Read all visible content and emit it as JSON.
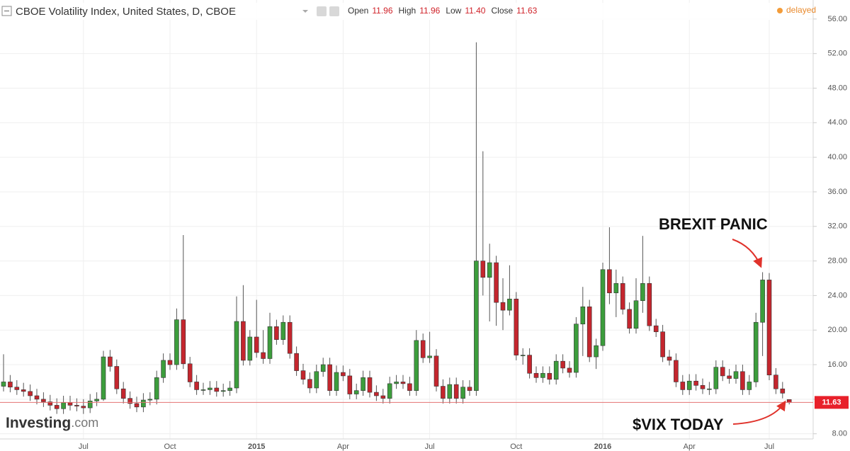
{
  "chart_data": {
    "type": "candlestick",
    "title": "CBOE Volatility Index, United States, D, CBOE",
    "ohlc_legend": [
      {
        "label": "Open",
        "value": "11.96"
      },
      {
        "label": "High",
        "value": "11.96"
      },
      {
        "label": "Low",
        "value": "11.40"
      },
      {
        "label": "Close",
        "value": "11.63"
      }
    ],
    "status": "delayed",
    "last_price_label": "11.63",
    "logo": {
      "name": "Investing",
      "suffix": ".com"
    },
    "annotations": [
      "BREXIT PANIC",
      "$VIX TODAY"
    ],
    "up_color": "#3c9d3c",
    "down_color": "#c4262e",
    "grid": true,
    "ylim": [
      7.4,
      58.2
    ],
    "yticks": [
      {
        "value": 8,
        "label": "8.00"
      },
      {
        "value": 12,
        "label": "12.00"
      },
      {
        "value": 16,
        "label": "16.00"
      },
      {
        "value": 20,
        "label": "20.00"
      },
      {
        "value": 24,
        "label": "24.00"
      },
      {
        "value": 28,
        "label": "28.00"
      },
      {
        "value": 32,
        "label": "32.00"
      },
      {
        "value": 36,
        "label": "36.00"
      },
      {
        "value": 40,
        "label": "40.00"
      },
      {
        "value": 44,
        "label": "44.00"
      },
      {
        "value": 48,
        "label": "48.00"
      },
      {
        "value": 52,
        "label": "52.00"
      },
      {
        "value": 56,
        "label": "56.00"
      }
    ],
    "categories": [
      null,
      null,
      null,
      null,
      null,
      null,
      null,
      null,
      null,
      null,
      null,
      null,
      "Jul",
      null,
      null,
      null,
      null,
      null,
      null,
      null,
      null,
      null,
      null,
      null,
      null,
      "Oct",
      null,
      null,
      null,
      null,
      null,
      null,
      null,
      null,
      null,
      null,
      null,
      null,
      "2015",
      null,
      null,
      null,
      null,
      null,
      null,
      null,
      null,
      null,
      null,
      null,
      null,
      "Apr",
      null,
      null,
      null,
      null,
      null,
      null,
      null,
      null,
      null,
      null,
      null,
      null,
      "Jul",
      null,
      null,
      null,
      null,
      null,
      null,
      null,
      null,
      null,
      null,
      null,
      null,
      "Oct",
      null,
      null,
      null,
      null,
      null,
      null,
      null,
      null,
      null,
      null,
      null,
      null,
      "2016",
      null,
      null,
      null,
      null,
      null,
      null,
      null,
      null,
      null,
      null,
      null,
      null,
      "Apr",
      null,
      null,
      null,
      null,
      null,
      null,
      null,
      null,
      null,
      null,
      null,
      "Jul",
      null,
      null,
      null
    ],
    "open": [
      13.5,
      14.0,
      13.4,
      13.1,
      12.9,
      12.4,
      12.0,
      11.7,
      11.3,
      10.9,
      11.6,
      11.3,
      11.2,
      11.0,
      11.8,
      12.0,
      16.9,
      15.8,
      13.2,
      12.1,
      11.5,
      11.1,
      11.9,
      12.0,
      14.5,
      16.5,
      16.0,
      21.2,
      16.1,
      14.0,
      13.1,
      13.1,
      13.3,
      12.9,
      13.0,
      13.3,
      21.0,
      16.5,
      19.2,
      17.4,
      16.7,
      20.4,
      18.9,
      20.9,
      17.3,
      15.3,
      14.3,
      13.3,
      15.2,
      16.0,
      13.0,
      15.1,
      14.7,
      12.6,
      13.0,
      14.5,
      12.8,
      12.4,
      12.1,
      13.8,
      14.0,
      13.8,
      13.0,
      18.8,
      16.8,
      17.0,
      13.5,
      12.1,
      13.7,
      12.1,
      13.4,
      13.0,
      28.0,
      26.1,
      27.8,
      23.2,
      22.3,
      23.6,
      17.1,
      17.1,
      15.0,
      14.5,
      15.0,
      14.3,
      16.4,
      15.6,
      15.1,
      20.7,
      22.7,
      16.9,
      18.2,
      27.0,
      24.3,
      25.4,
      22.4,
      20.2,
      23.4,
      25.4,
      20.5,
      19.8,
      16.9,
      16.5,
      14.0,
      13.1,
      14.1,
      13.6,
      13.2,
      13.2,
      15.7,
      14.7,
      14.4,
      15.2,
      13.1,
      14.0,
      20.9,
      25.8,
      14.8,
      13.2,
      11.96
    ],
    "high": [
      17.2,
      14.8,
      14.2,
      13.9,
      13.7,
      13.2,
      12.8,
      12.5,
      12.1,
      12.4,
      12.4,
      12.1,
      12.0,
      12.6,
      12.8,
      17.6,
      17.7,
      16.6,
      14.0,
      12.9,
      12.3,
      12.7,
      12.8,
      15.3,
      17.3,
      17.3,
      22.5,
      31.0,
      16.9,
      14.8,
      13.9,
      14.1,
      14.1,
      13.8,
      14.1,
      23.9,
      25.2,
      20.0,
      23.5,
      20.0,
      22.0,
      21.2,
      21.7,
      21.7,
      18.1,
      16.1,
      15.1,
      16.0,
      16.8,
      16.8,
      15.9,
      15.9,
      15.5,
      13.8,
      15.3,
      15.3,
      13.6,
      13.2,
      14.6,
      14.8,
      14.8,
      14.6,
      20.0,
      19.6,
      19.8,
      17.8,
      14.3,
      14.5,
      14.5,
      14.2,
      14.2,
      53.3,
      40.7,
      30.0,
      28.6,
      26.0,
      27.5,
      24.4,
      17.9,
      17.9,
      15.8,
      15.8,
      15.8,
      17.2,
      17.2,
      16.4,
      21.5,
      25.0,
      23.5,
      19.0,
      27.8,
      31.9,
      27.0,
      26.2,
      23.2,
      26.0,
      30.9,
      26.2,
      21.3,
      20.6,
      17.7,
      17.3,
      14.8,
      14.9,
      14.9,
      14.4,
      14.0,
      16.5,
      16.5,
      15.5,
      16.0,
      16.0,
      14.8,
      22.0,
      26.7,
      26.6,
      15.6,
      14.0,
      11.96
    ],
    "low": [
      12.9,
      12.8,
      12.5,
      12.3,
      11.8,
      11.4,
      11.1,
      10.7,
      10.3,
      10.3,
      10.7,
      10.6,
      10.3,
      10.4,
      11.2,
      11.8,
      15.2,
      12.6,
      11.5,
      10.9,
      10.5,
      10.5,
      11.3,
      11.4,
      13.9,
      15.4,
      15.4,
      15.5,
      13.4,
      12.5,
      12.5,
      12.5,
      12.3,
      12.3,
      12.4,
      12.7,
      15.9,
      15.9,
      16.8,
      16.1,
      16.1,
      18.3,
      18.3,
      16.7,
      14.7,
      13.7,
      12.7,
      12.7,
      14.6,
      12.4,
      12.4,
      14.1,
      12.0,
      12.0,
      12.4,
      12.2,
      11.8,
      11.5,
      11.5,
      13.2,
      13.2,
      12.4,
      12.4,
      16.2,
      16.2,
      12.9,
      11.5,
      11.5,
      11.5,
      11.5,
      12.4,
      12.4,
      24.0,
      21.0,
      20.5,
      20.0,
      21.7,
      16.5,
      16.0,
      14.4,
      13.9,
      13.9,
      13.7,
      13.7,
      15.0,
      14.5,
      14.5,
      17.0,
      16.3,
      15.5,
      17.6,
      23.0,
      21.5,
      21.8,
      19.6,
      19.6,
      22.0,
      19.9,
      19.2,
      16.3,
      15.9,
      13.4,
      12.5,
      12.5,
      13.0,
      12.6,
      12.5,
      12.6,
      14.1,
      13.8,
      13.8,
      12.5,
      12.5,
      13.4,
      17.0,
      14.2,
      12.6,
      12.1,
      11.4
    ],
    "close": [
      14.0,
      13.4,
      13.1,
      12.9,
      12.4,
      12.0,
      11.7,
      11.3,
      10.9,
      11.6,
      11.3,
      11.2,
      11.0,
      11.8,
      12.0,
      16.9,
      15.8,
      13.2,
      12.1,
      11.5,
      11.1,
      11.9,
      12.0,
      14.5,
      16.5,
      16.0,
      21.2,
      16.1,
      14.0,
      13.1,
      13.1,
      13.3,
      12.9,
      13.0,
      13.3,
      21.0,
      16.5,
      19.2,
      17.4,
      16.7,
      20.4,
      18.9,
      20.9,
      17.3,
      15.3,
      14.3,
      13.3,
      15.2,
      16.0,
      13.0,
      15.1,
      14.7,
      12.6,
      13.0,
      14.5,
      12.8,
      12.4,
      12.1,
      13.8,
      14.0,
      13.8,
      13.0,
      18.8,
      16.8,
      17.0,
      13.5,
      12.1,
      13.7,
      12.1,
      13.4,
      13.0,
      28.0,
      26.1,
      27.8,
      23.2,
      22.3,
      23.6,
      17.1,
      17.1,
      15.0,
      14.5,
      15.0,
      14.3,
      16.4,
      15.6,
      15.1,
      20.7,
      22.7,
      16.9,
      18.2,
      27.0,
      24.3,
      25.4,
      22.4,
      20.2,
      23.4,
      25.4,
      20.5,
      19.8,
      16.9,
      16.5,
      14.0,
      13.1,
      14.1,
      13.6,
      13.2,
      13.2,
      15.7,
      14.7,
      14.4,
      15.2,
      13.1,
      14.0,
      20.9,
      25.8,
      14.8,
      13.2,
      12.7,
      11.63
    ]
  }
}
